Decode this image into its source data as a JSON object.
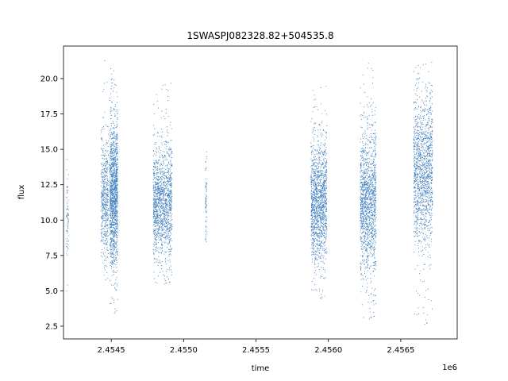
{
  "chart_data": {
    "type": "scatter",
    "title": "1SWASPJ082328.82+504535.8",
    "xlabel": "time",
    "ylabel": "flux",
    "x_offset_label": "1e6",
    "xlim": [
      2454170,
      2456890
    ],
    "ylim": [
      1.6,
      22.3
    ],
    "x_ticks": [
      2454500,
      2455000,
      2455500,
      2456000,
      2456500
    ],
    "x_tick_labels": [
      "2.4545",
      "2.4550",
      "2.4555",
      "2.4560",
      "2.4565"
    ],
    "y_ticks": [
      2.5,
      5.0,
      7.5,
      10.0,
      12.5,
      15.0,
      17.5,
      20.0
    ],
    "y_tick_labels": [
      "2.5",
      "5.0",
      "7.5",
      "10.0",
      "12.5",
      "15.0",
      "17.5",
      "20.0"
    ],
    "grid": false,
    "marker_color": "#3f7fbf",
    "clusters": [
      {
        "x_start": 2454190,
        "x_end": 2454205,
        "y_center": 10.0,
        "y_low": 4.4,
        "y_high": 15.2,
        "density": "sparse"
      },
      {
        "x_start": 2454430,
        "x_end": 2454480,
        "y_center": 11.5,
        "y_low": 5.5,
        "y_high": 21.3,
        "density": "medium"
      },
      {
        "x_start": 2454490,
        "x_end": 2454545,
        "y_center": 11.8,
        "y_low": 3.2,
        "y_high": 21.1,
        "density": "dense"
      },
      {
        "x_start": 2454790,
        "x_end": 2454920,
        "y_center": 11.2,
        "y_low": 5.3,
        "y_high": 19.7,
        "density": "dense"
      },
      {
        "x_start": 2455150,
        "x_end": 2455160,
        "y_center": 11.5,
        "y_low": 7.3,
        "y_high": 18.0,
        "density": "sparse"
      },
      {
        "x_start": 2455880,
        "x_end": 2455990,
        "y_center": 11.3,
        "y_low": 4.3,
        "y_high": 19.5,
        "density": "dense"
      },
      {
        "x_start": 2456220,
        "x_end": 2456330,
        "y_center": 11.2,
        "y_low": 2.8,
        "y_high": 21.3,
        "density": "dense"
      },
      {
        "x_start": 2456590,
        "x_end": 2456720,
        "y_center": 13.5,
        "y_low": 2.4,
        "y_high": 21.2,
        "density": "dense"
      }
    ]
  }
}
